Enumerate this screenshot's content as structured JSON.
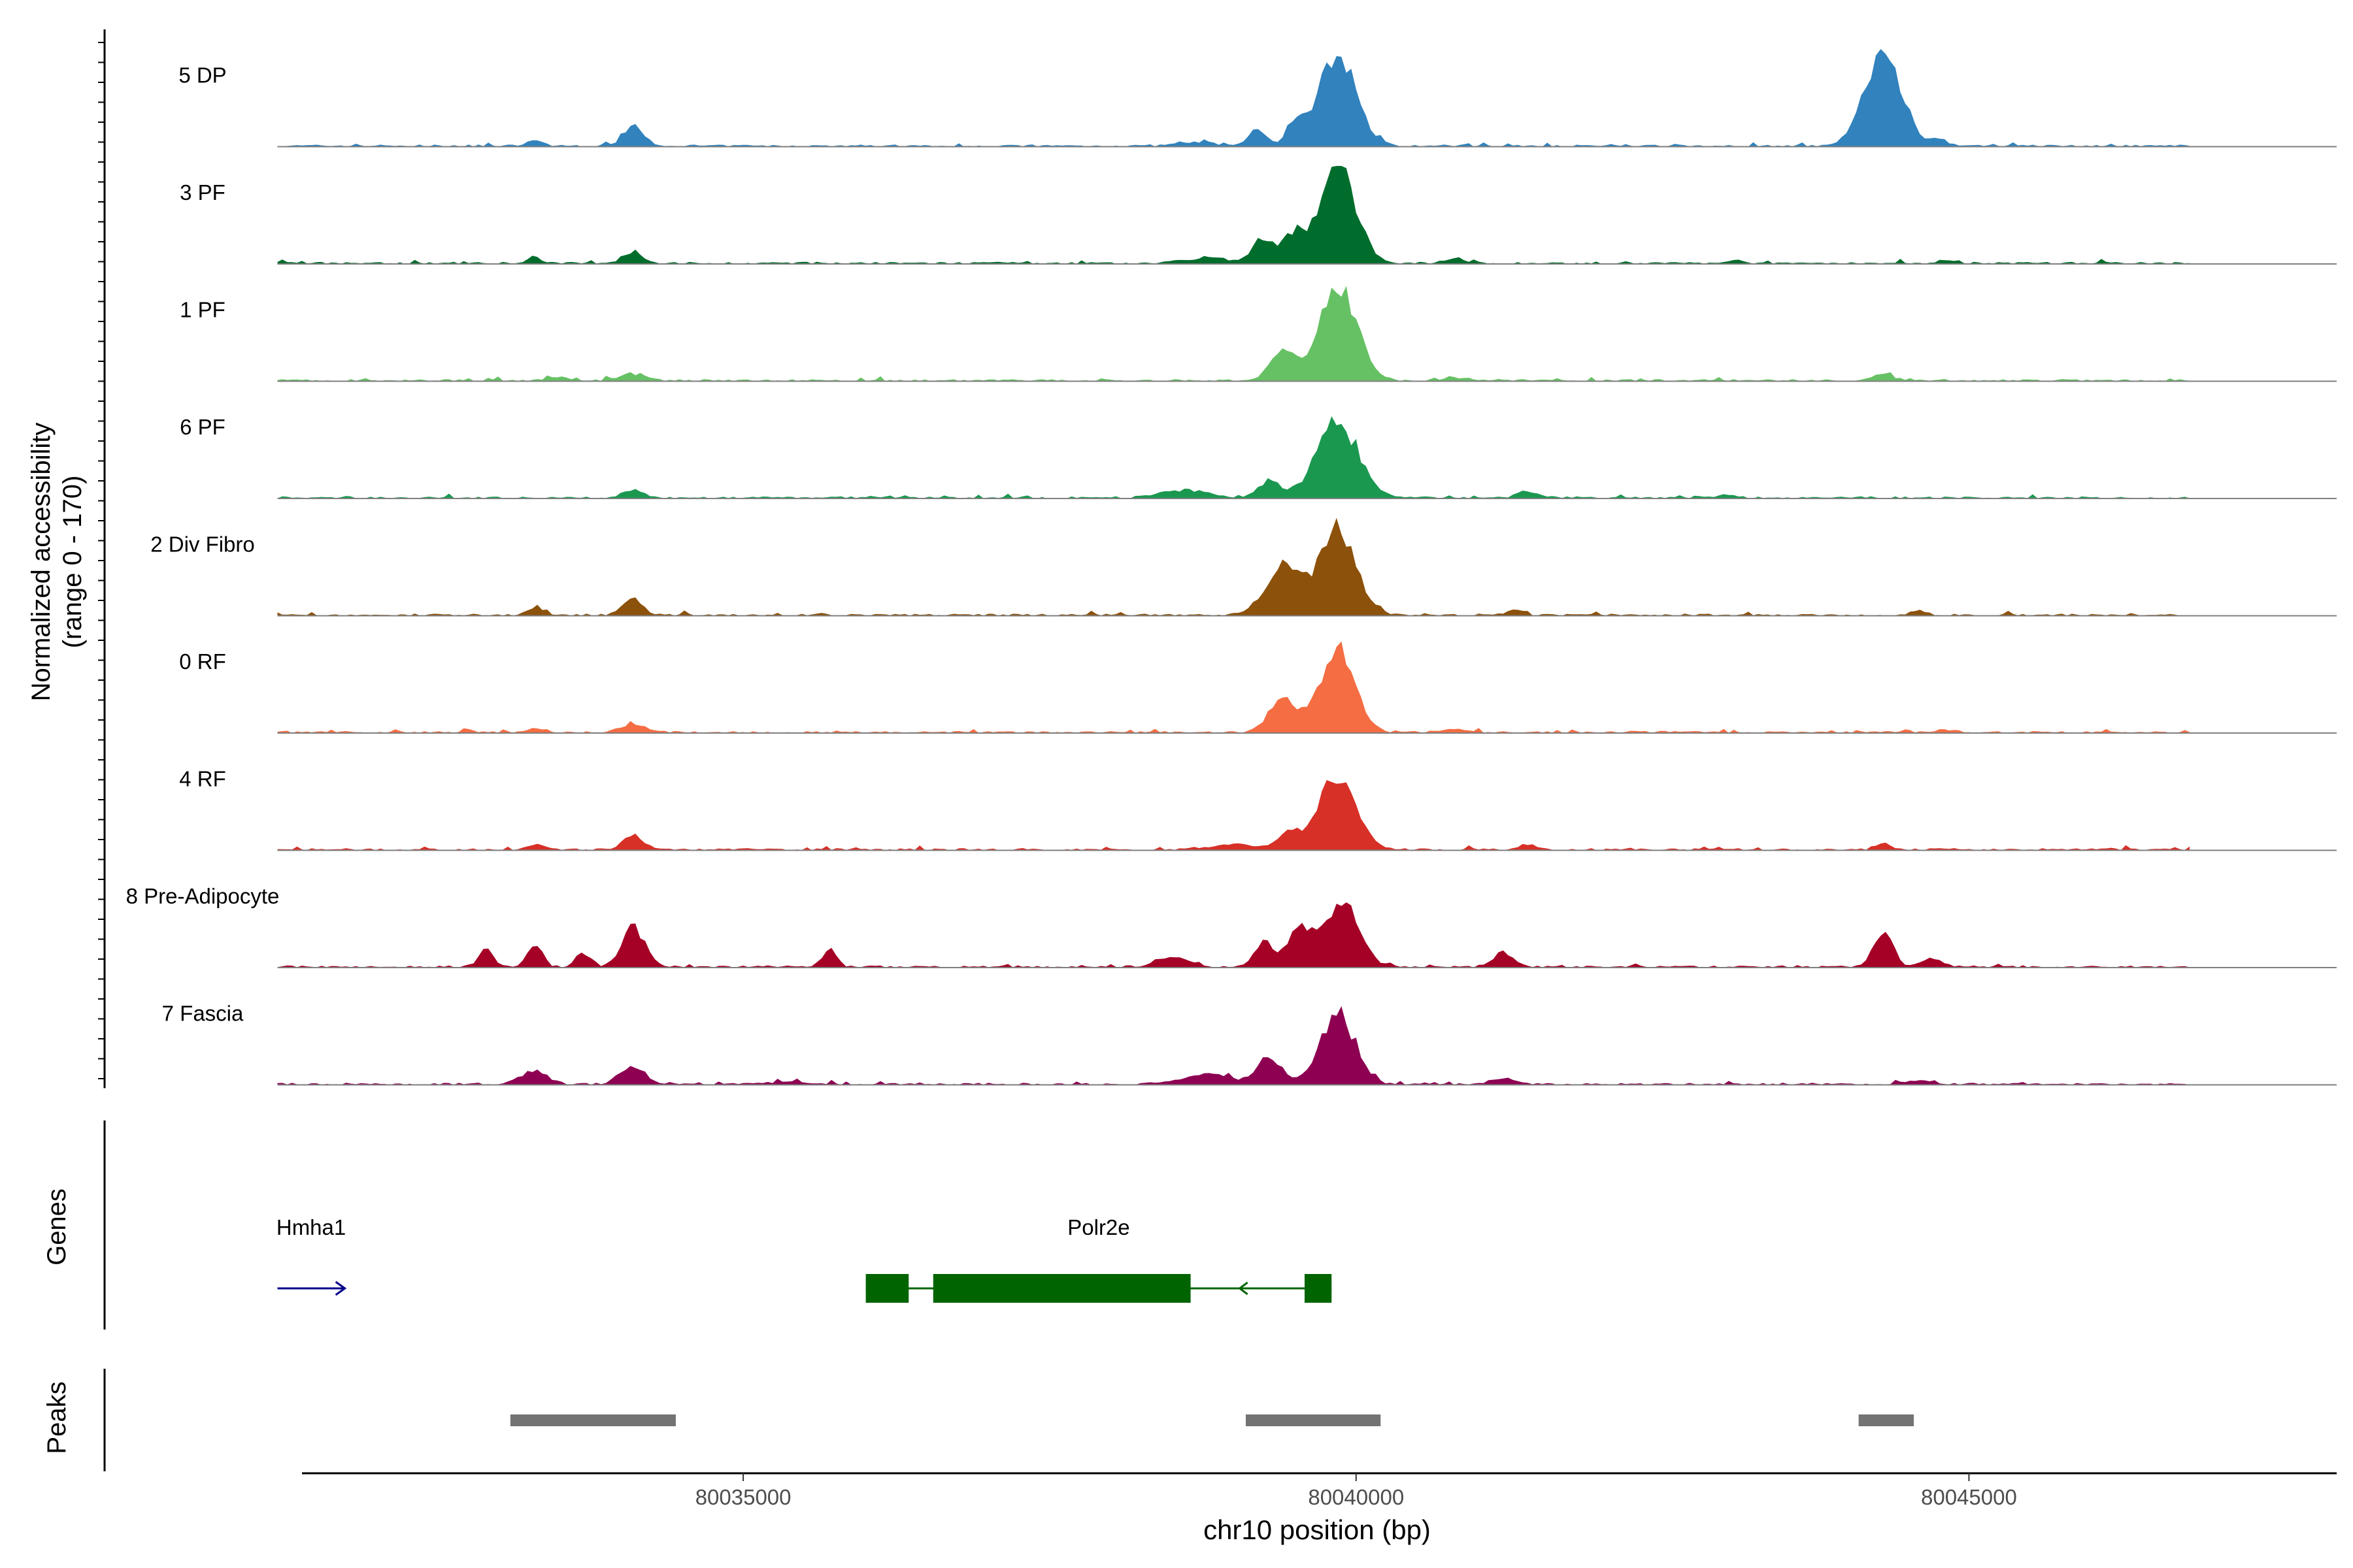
{
  "chart_data": {
    "type": "area",
    "title": "",
    "xlabel": "chr10 position (bp)",
    "ylabel_line1": "Normalized accessibility",
    "ylabel_line2": "(range 0 - 170)",
    "xlim": [
      80031400,
      80048000
    ],
    "ylim": [
      0,
      170
    ],
    "x_ticks": [
      80035000,
      80040000,
      80045000
    ],
    "x_tick_labels": [
      "80035000",
      "80040000",
      "80045000"
    ],
    "genes_label": "Genes",
    "peaks_label": "Peaks",
    "tracks": [
      {
        "name": "5 DP",
        "color": "#3182bd",
        "peaks": [
          [
            80033300,
            10,
            60
          ],
          [
            80034100,
            35,
            80
          ],
          [
            80038700,
            6,
            140
          ],
          [
            80039200,
            28,
            70
          ],
          [
            80039500,
            40,
            70
          ],
          [
            80039850,
            160,
            150
          ],
          [
            80044300,
            160,
            150
          ],
          [
            80044750,
            12,
            60
          ]
        ]
      },
      {
        "name": "3 PF",
        "color": "#006d2c",
        "peaks": [
          [
            80033300,
            10,
            60
          ],
          [
            80034100,
            20,
            80
          ],
          [
            80038800,
            10,
            180
          ],
          [
            80039250,
            40,
            90
          ],
          [
            80039500,
            50,
            80
          ],
          [
            80039850,
            165,
            150
          ],
          [
            80040800,
            8,
            80
          ],
          [
            80043100,
            6,
            60
          ],
          [
            80044800,
            6,
            60
          ]
        ]
      },
      {
        "name": "1 PF",
        "color": "#66c164",
        "peaks": [
          [
            80033500,
            6,
            80
          ],
          [
            80034100,
            12,
            100
          ],
          [
            80039400,
            50,
            100
          ],
          [
            80039850,
            170,
            150
          ],
          [
            80040800,
            5,
            100
          ],
          [
            80044300,
            10,
            80
          ]
        ]
      },
      {
        "name": "6 PF",
        "color": "#1a9850",
        "peaks": [
          [
            80034100,
            14,
            80
          ],
          [
            80038600,
            14,
            180
          ],
          [
            80039300,
            30,
            90
          ],
          [
            80039850,
            130,
            170
          ],
          [
            80041400,
            12,
            80
          ],
          [
            80043000,
            5,
            60
          ]
        ]
      },
      {
        "name": "2 Div Fibro",
        "color": "#8c510a",
        "peaks": [
          [
            80033300,
            14,
            60
          ],
          [
            80034100,
            28,
            80
          ],
          [
            80039400,
            85,
            140
          ],
          [
            80039850,
            150,
            150
          ],
          [
            80041300,
            10,
            60
          ],
          [
            80044600,
            8,
            60
          ]
        ]
      },
      {
        "name": "0 RF",
        "color": "#f46d43",
        "peaks": [
          [
            80033300,
            8,
            60
          ],
          [
            80034100,
            14,
            100
          ],
          [
            80039400,
            60,
            110
          ],
          [
            80039850,
            150,
            140
          ],
          [
            80040800,
            6,
            80
          ],
          [
            80044800,
            5,
            80
          ]
        ]
      },
      {
        "name": "4 RF",
        "color": "#d73027",
        "peaks": [
          [
            80033300,
            10,
            60
          ],
          [
            80034100,
            25,
            80
          ],
          [
            80039000,
            10,
            150
          ],
          [
            80039450,
            30,
            90
          ],
          [
            80039850,
            135,
            150
          ],
          [
            80041400,
            10,
            80
          ],
          [
            80044300,
            12,
            60
          ]
        ]
      },
      {
        "name": "8 Pre-Adipocyte",
        "color": "#a50026",
        "peaks": [
          [
            80032900,
            30,
            60
          ],
          [
            80033300,
            40,
            60
          ],
          [
            80033700,
            25,
            60
          ],
          [
            80034100,
            70,
            90
          ],
          [
            80035700,
            30,
            60
          ],
          [
            80038500,
            18,
            120
          ],
          [
            80039250,
            40,
            80
          ],
          [
            80039550,
            70,
            100
          ],
          [
            80039900,
            120,
            130
          ],
          [
            80041200,
            25,
            80
          ],
          [
            80044300,
            60,
            80
          ],
          [
            80044700,
            15,
            80
          ]
        ]
      },
      {
        "name": "7 Fascia",
        "color": "#8e0152",
        "peaks": [
          [
            80033300,
            24,
            100
          ],
          [
            80034100,
            30,
            100
          ],
          [
            80035400,
            6,
            100
          ],
          [
            80038800,
            16,
            200
          ],
          [
            80039300,
            45,
            100
          ],
          [
            80039850,
            125,
            140
          ],
          [
            80041200,
            10,
            100
          ],
          [
            80044600,
            6,
            120
          ]
        ]
      }
    ],
    "genes": [
      {
        "name": "Hmha1",
        "strand": "+",
        "start": 80031200,
        "end": 80031750,
        "color": "#00008b",
        "exons": []
      },
      {
        "name": "Polr2e",
        "strand": "-",
        "start": 80036000,
        "end": 80039800,
        "color": "#006400",
        "exons": [
          [
            80036000,
            80036350
          ],
          [
            80036550,
            80038650
          ],
          [
            80039580,
            80039800
          ]
        ]
      }
    ],
    "peak_regions": [
      [
        80033100,
        80034450
      ],
      [
        80039100,
        80040200
      ],
      [
        80044100,
        80044550
      ]
    ]
  }
}
